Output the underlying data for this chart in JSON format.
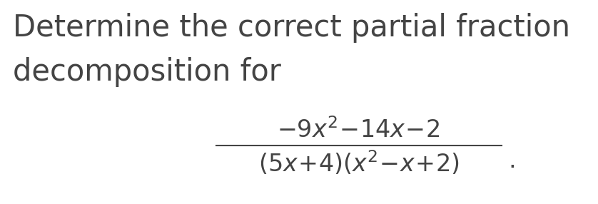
{
  "background_color": "#ffffff",
  "text_color": "#444444",
  "line1": "Determine the correct partial fraction",
  "line2": "decomposition for",
  "numerator": "$-9x^2\\!-\\!14x\\!-\\!2$",
  "denominator": "$(5x\\!+\\!4)(x^2\\!-\\!x\\!+\\!2)$",
  "period": ".",
  "text_fontsize": 30,
  "math_fontsize": 24,
  "fig_width": 8.38,
  "fig_height": 2.86,
  "dpi": 100
}
